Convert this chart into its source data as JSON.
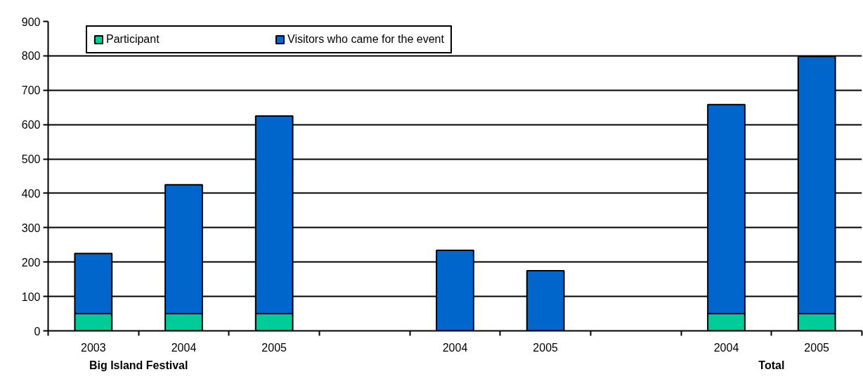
{
  "chart_data": {
    "type": "bar",
    "stacked": true,
    "categories": [
      "2003",
      "2004",
      "2005",
      null,
      "2004",
      "2005",
      null,
      "2004",
      "2005"
    ],
    "series": [
      {
        "name": "Participant",
        "color": "#00cc99",
        "values": [
          50,
          50,
          50,
          null,
          null,
          null,
          null,
          50,
          50
        ]
      },
      {
        "name": "Visitors who came for the event",
        "color": "#0066cc",
        "values": [
          175,
          375,
          575,
          null,
          234,
          175,
          null,
          608,
          748
        ]
      }
    ],
    "ylim": [
      0,
      900
    ],
    "yticks": [
      0,
      100,
      200,
      300,
      400,
      500,
      600,
      700,
      800,
      900
    ],
    "grid": "y",
    "legend": "top",
    "annotations": [
      "Big Island Festival",
      "Total"
    ]
  }
}
